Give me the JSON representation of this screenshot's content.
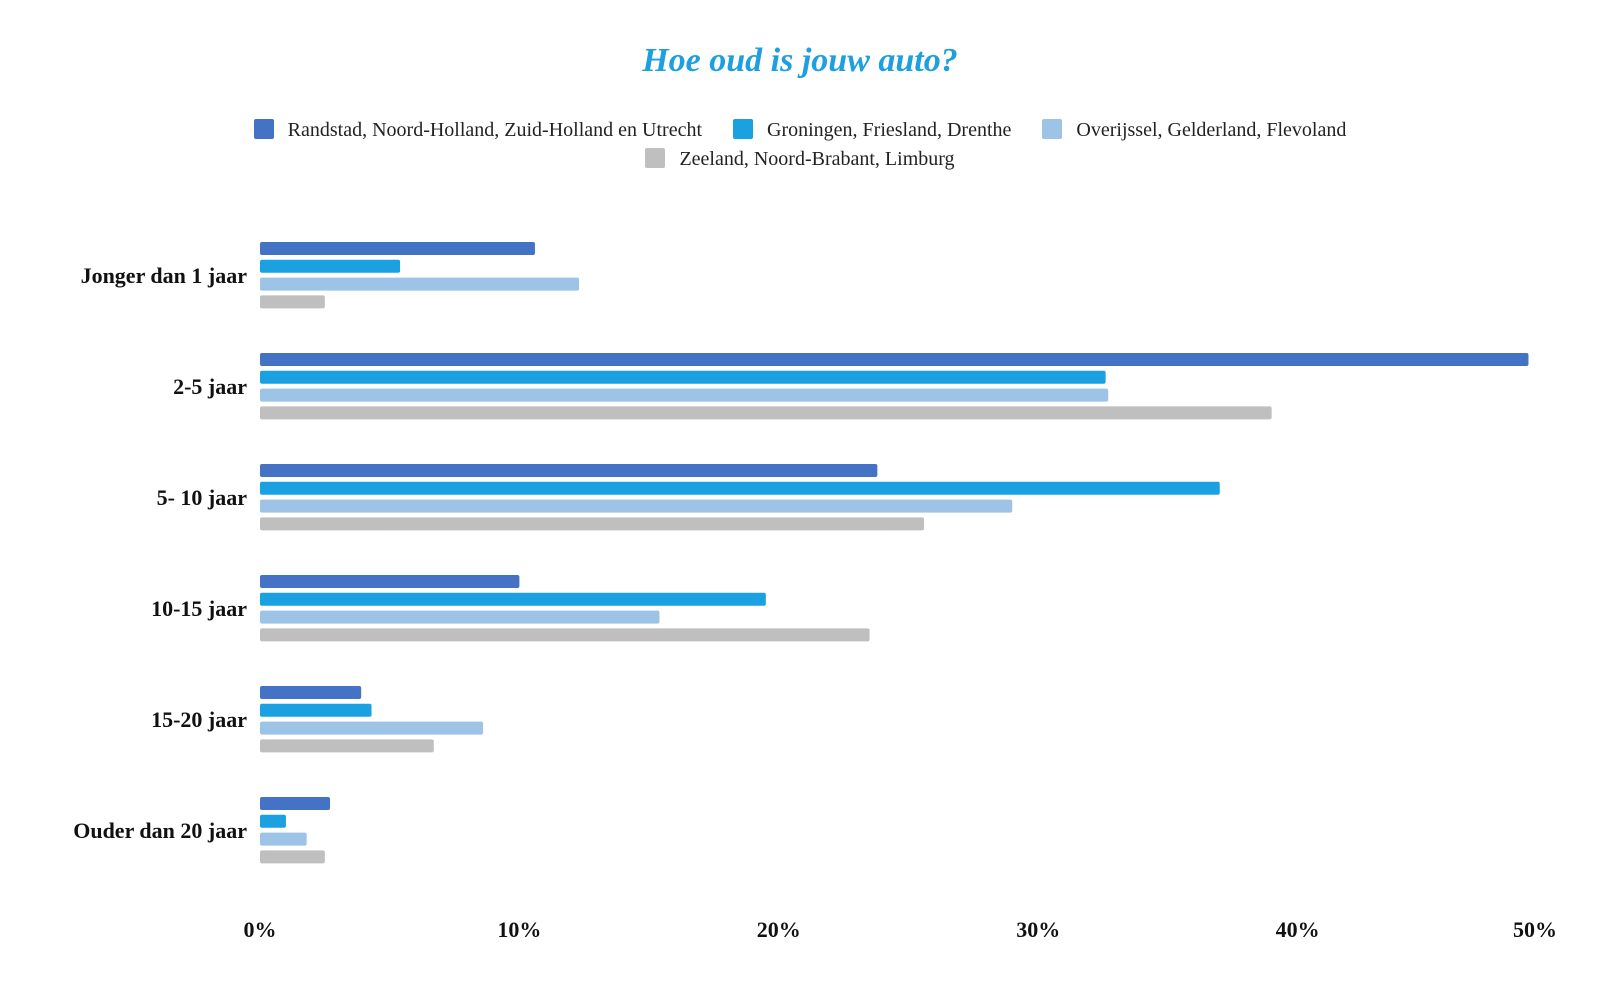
{
  "chart_data": {
    "type": "bar",
    "orientation": "horizontal",
    "title": "Hoe oud is jouw auto?",
    "categories": [
      "Jonger dan 1 jaar",
      "2-5 jaar",
      "5- 10 jaar",
      "10-15 jaar",
      "15-20 jaar",
      "Ouder dan 20 jaar"
    ],
    "series": [
      {
        "name": "Randstad, Noord-Holland, Zuid-Holland en Utrecht",
        "color": "#4472c4",
        "values": [
          10.6,
          48.9,
          23.8,
          10.0,
          3.9,
          2.7
        ]
      },
      {
        "name": "Groningen, Friesland, Drenthe",
        "color": "#1ba1e2",
        "values": [
          5.4,
          32.6,
          37.0,
          19.5,
          4.3,
          1.0
        ]
      },
      {
        "name": "Overijssel, Gelderland, Flevoland",
        "color": "#9dc3e6",
        "values": [
          12.3,
          32.7,
          29.0,
          15.4,
          8.6,
          1.8
        ]
      },
      {
        "name": "Zeeland, Noord-Brabant, Limburg",
        "color": "#bfbfbf",
        "values": [
          2.5,
          39.0,
          25.6,
          23.5,
          6.7,
          2.5
        ]
      }
    ],
    "xlim": [
      0,
      50
    ],
    "xticks": [
      0,
      10,
      20,
      30,
      40,
      50
    ],
    "xtick_labels": [
      "0%",
      "10%",
      "20%",
      "30%",
      "40%",
      "50%"
    ],
    "xlabel": "",
    "ylabel": "",
    "legend_position": "top",
    "grid": false
  }
}
